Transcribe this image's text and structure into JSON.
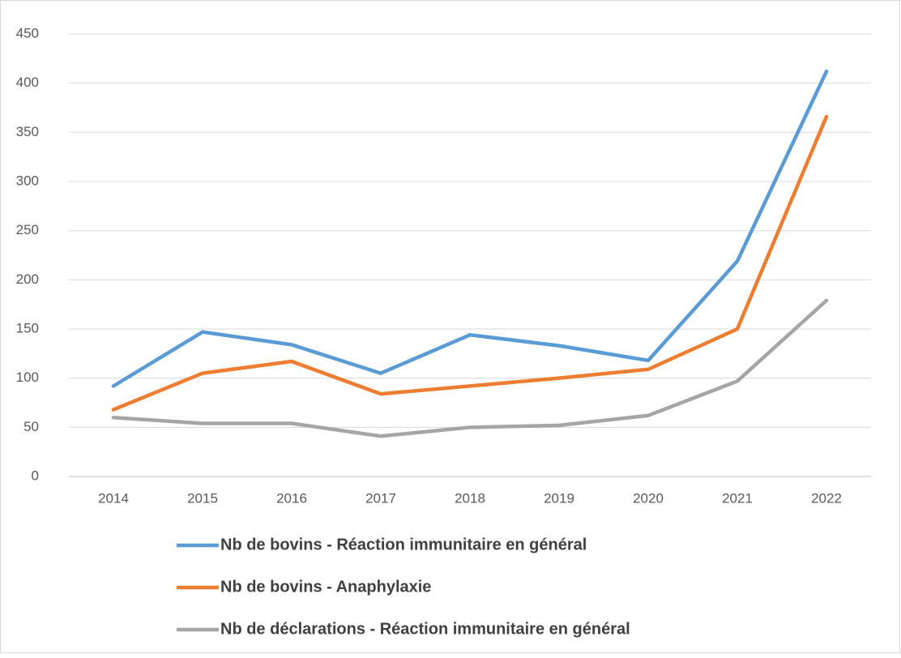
{
  "chart_data": {
    "type": "line",
    "categories": [
      "2014",
      "2015",
      "2016",
      "2017",
      "2018",
      "2019",
      "2020",
      "2021",
      "2022"
    ],
    "series": [
      {
        "name": "Nb de bovins - Réaction immunitaire en général",
        "color": "#5b9bd5",
        "values": [
          92,
          147,
          134,
          105,
          144,
          133,
          118,
          219,
          412
        ]
      },
      {
        "name": "Nb de bovins - Anaphylaxie",
        "color": "#ed7d31",
        "values": [
          68,
          105,
          117,
          84,
          92,
          100,
          109,
          150,
          366
        ]
      },
      {
        "name": "Nb de déclarations - Réaction immunitaire en général",
        "color": "#a5a5a5",
        "values": [
          60,
          54,
          54,
          41,
          50,
          52,
          62,
          97,
          179
        ]
      }
    ],
    "ylim": [
      0,
      450
    ],
    "yticks": [
      0,
      50,
      100,
      150,
      200,
      250,
      300,
      350,
      400,
      450
    ],
    "grid": true,
    "legend": "bottom"
  }
}
